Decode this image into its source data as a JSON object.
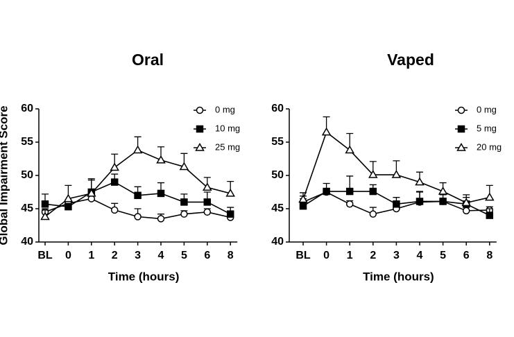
{
  "chart_data": [
    {
      "type": "line",
      "title": "Oral",
      "xlabel": "Time (hours)",
      "ylabel": "Global Impairment Score",
      "categories": [
        "BL",
        "0",
        "1",
        "2",
        "3",
        "4",
        "5",
        "6",
        "8"
      ],
      "ylim": [
        40,
        60
      ],
      "yticks": [
        40,
        45,
        50,
        55,
        60
      ],
      "legend": "upper right",
      "series": [
        {
          "name": "0 mg",
          "color": "#000000",
          "marker": "circle",
          "values": [
            44.5,
            45.8,
            46.5,
            44.8,
            43.8,
            43.5,
            44.2,
            44.5,
            43.7
          ],
          "errors": [
            0.5,
            0.5,
            0.5,
            1.0,
            1.2,
            0.7,
            0.5,
            0.5,
            0.5
          ]
        },
        {
          "name": "10 mg",
          "color": "#000000",
          "marker": "square",
          "values": [
            45.7,
            45.3,
            47.5,
            49.0,
            47.0,
            47.3,
            46.0,
            46.0,
            44.2
          ],
          "errors": [
            1.5,
            0.5,
            2.0,
            1.2,
            1.3,
            1.6,
            1.2,
            1.5,
            1.0
          ]
        },
        {
          "name": "25 mg",
          "color": "#000000",
          "marker": "triangle",
          "values": [
            43.8,
            46.5,
            47.3,
            51.2,
            53.8,
            52.3,
            51.3,
            48.2,
            47.3
          ],
          "errors": [
            1.0,
            2.0,
            2.0,
            2.0,
            2.0,
            2.0,
            2.0,
            1.5,
            1.8
          ]
        }
      ]
    },
    {
      "type": "line",
      "title": "Vaped",
      "xlabel": "Time (hours)",
      "categories": [
        "BL",
        "0",
        "1",
        "2",
        "3",
        "4",
        "5",
        "6",
        "8"
      ],
      "ylim": [
        40,
        60
      ],
      "yticks": [
        40,
        45,
        50,
        55,
        60
      ],
      "legend": "upper right",
      "series": [
        {
          "name": "0 mg",
          "color": "#000000",
          "marker": "circle",
          "values": [
            46.0,
            47.5,
            45.7,
            44.2,
            45.0,
            46.0,
            46.1,
            44.7,
            44.8
          ],
          "errors": [
            0.5,
            0.5,
            0.5,
            1.0,
            0.5,
            1.5,
            0.5,
            0.5,
            0.5
          ]
        },
        {
          "name": "5 mg",
          "color": "#000000",
          "marker": "square",
          "values": [
            45.4,
            47.6,
            47.6,
            47.6,
            45.7,
            46.1,
            46.1,
            45.7,
            44.0
          ],
          "errors": [
            1.5,
            1.2,
            2.3,
            1.0,
            1.0,
            1.5,
            1.0,
            1.0,
            1.0
          ]
        },
        {
          "name": "20 mg",
          "color": "#000000",
          "marker": "triangle",
          "values": [
            46.4,
            56.5,
            53.8,
            50.1,
            50.1,
            49.0,
            47.6,
            45.9,
            46.7
          ],
          "errors": [
            1.0,
            2.3,
            2.5,
            2.0,
            2.1,
            1.5,
            1.3,
            1.2,
            1.8
          ]
        }
      ]
    }
  ]
}
